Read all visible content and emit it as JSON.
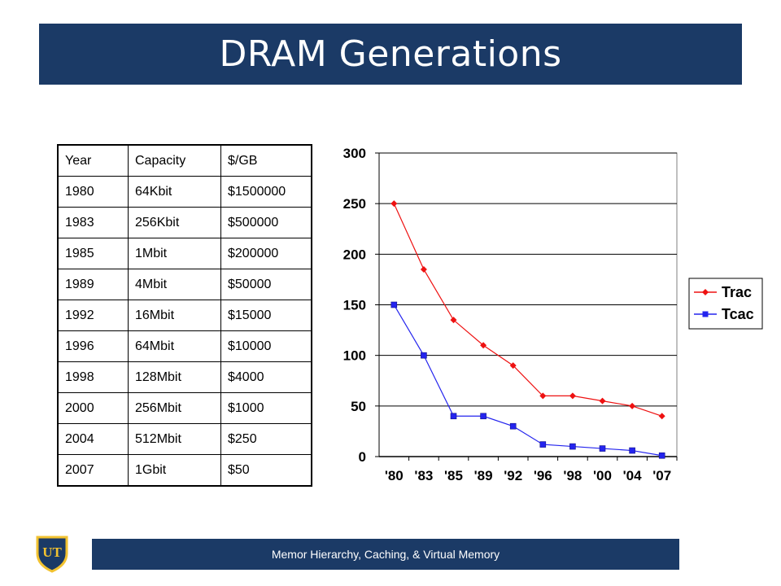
{
  "slide": {
    "title": "DRAM Generations",
    "footer": "Memor Hierarchy, Caching, & Virtual Memory",
    "logo_text": "UT",
    "colors": {
      "bar": "#1b3a66",
      "gold": "#f2c230"
    }
  },
  "table": {
    "headers": [
      "Year",
      "Capacity",
      "$/GB"
    ],
    "rows": [
      [
        "1980",
        "64Kbit",
        "$1500000"
      ],
      [
        "1983",
        "256Kbit",
        "$500000"
      ],
      [
        "1985",
        "1Mbit",
        "$200000"
      ],
      [
        "1989",
        "4Mbit",
        "$50000"
      ],
      [
        "1992",
        "16Mbit",
        "$15000"
      ],
      [
        "1996",
        "64Mbit",
        "$10000"
      ],
      [
        "1998",
        "128Mbit",
        "$4000"
      ],
      [
        "2000",
        "256Mbit",
        "$1000"
      ],
      [
        "2004",
        "512Mbit",
        "$250"
      ],
      [
        "2007",
        "1Gbit",
        "$50"
      ]
    ]
  },
  "chart_data": {
    "type": "line",
    "categories": [
      "'80",
      "'83",
      "'85",
      "'89",
      "'92",
      "'96",
      "'98",
      "'00",
      "'04",
      "'07"
    ],
    "series": [
      {
        "name": "Trac",
        "color": "#ee1111",
        "marker": "diamond",
        "values": [
          250,
          185,
          135,
          110,
          90,
          60,
          60,
          55,
          50,
          40
        ]
      },
      {
        "name": "Tcac",
        "color": "#2424ee",
        "marker": "square",
        "values": [
          150,
          100,
          40,
          40,
          30,
          12,
          10,
          8,
          6,
          1
        ]
      }
    ],
    "ylim": [
      0,
      300
    ],
    "yticks": [
      "0",
      "50",
      "100",
      "150",
      "200",
      "250",
      "300"
    ],
    "grid": true,
    "legend": "right"
  }
}
